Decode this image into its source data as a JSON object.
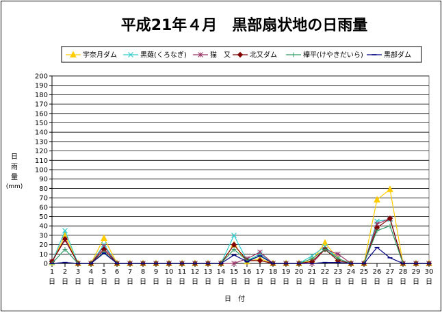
{
  "chart_data": {
    "type": "line",
    "title": "平成21年４月　黒部扇状地の日雨量",
    "xlabel": "日　付",
    "ylabel_lines": [
      "日",
      "雨",
      "量",
      "(mm)"
    ],
    "ylim": [
      0,
      200
    ],
    "ytick_step": 10,
    "grid": true,
    "legend_position": "top",
    "x": [
      1,
      2,
      3,
      4,
      5,
      6,
      7,
      8,
      9,
      10,
      11,
      12,
      13,
      14,
      15,
      16,
      17,
      18,
      19,
      20,
      21,
      22,
      23,
      24,
      25,
      26,
      27,
      28,
      29,
      30
    ],
    "x_suffix": "日",
    "series": [
      {
        "name": "宇奈月ダム",
        "color": "#FFCC00",
        "marker": "triangle",
        "values": [
          1,
          30,
          0,
          0,
          27,
          0,
          0,
          0,
          0,
          0,
          0,
          0,
          0,
          0,
          20,
          2,
          5,
          0,
          0,
          0,
          3,
          22,
          5,
          0,
          0,
          68,
          79,
          0,
          0,
          0
        ]
      },
      {
        "name": "黒薙(くろなぎ)",
        "color": "#33CCCC",
        "marker": "x",
        "values": [
          1,
          35,
          0,
          0,
          20,
          0,
          0,
          0,
          0,
          0,
          0,
          0,
          0,
          0,
          30,
          3,
          10,
          0,
          0,
          0,
          8,
          18,
          5,
          0,
          0,
          45,
          47,
          0,
          0,
          0
        ]
      },
      {
        "name": "猫　又",
        "color": "#993366",
        "marker": "asterisk",
        "values": [
          2,
          25,
          0,
          0,
          18,
          0,
          0,
          0,
          0,
          0,
          0,
          0,
          0,
          0,
          0,
          5,
          12,
          0,
          0,
          0,
          0,
          15,
          10,
          0,
          0,
          42,
          48,
          0,
          0,
          0
        ]
      },
      {
        "name": "北又ダム",
        "color": "#800000",
        "marker": "diamond",
        "values": [
          2,
          26,
          0,
          0,
          15,
          0,
          0,
          0,
          0,
          0,
          0,
          0,
          0,
          0,
          20,
          3,
          3,
          0,
          0,
          0,
          2,
          15,
          3,
          0,
          0,
          38,
          48,
          0,
          0,
          0
        ]
      },
      {
        "name": "欅平(けやきだいら)",
        "color": "#339966",
        "marker": "plus",
        "values": [
          0,
          15,
          0,
          0,
          12,
          0,
          0,
          0,
          0,
          0,
          0,
          0,
          0,
          0,
          15,
          3,
          8,
          0,
          0,
          0,
          5,
          15,
          5,
          0,
          0,
          35,
          40,
          0,
          0,
          0
        ]
      },
      {
        "name": "黒部ダム",
        "color": "#000080",
        "marker": "dash",
        "values": [
          0,
          1,
          0,
          0,
          11,
          0,
          0,
          0,
          0,
          0,
          0,
          0,
          0,
          0,
          9,
          2,
          8,
          0,
          0,
          0,
          0,
          1,
          1,
          0,
          0,
          17,
          6,
          0,
          0,
          0
        ]
      }
    ]
  }
}
